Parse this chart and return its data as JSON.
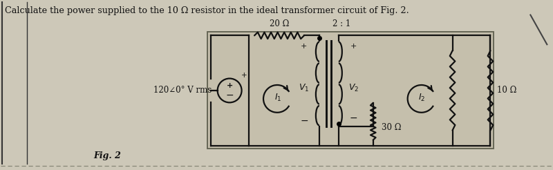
{
  "title_text": "Calculate the power supplied to the 10 Ω resistor in the ideal transformer circuit of Fig. 2.",
  "fig_label": "Fig. 2",
  "source_label": "120∠0° V rms",
  "resistor_top": "20 Ω",
  "transformer_ratio": "2 : 1",
  "resistor_right": "10 Ω",
  "resistor_bottom": "30 Ω",
  "v1_label": "V_1",
  "v2_label": "V_2",
  "i1_label": "I_1",
  "i2_label": "I_2",
  "bg_color": "#cdc8b8",
  "circuit_bg": "#c8c2ae",
  "line_color": "#111111",
  "line_width": 1.6,
  "fig_width": 8.0,
  "fig_height": 2.46,
  "border_color": "#555544"
}
